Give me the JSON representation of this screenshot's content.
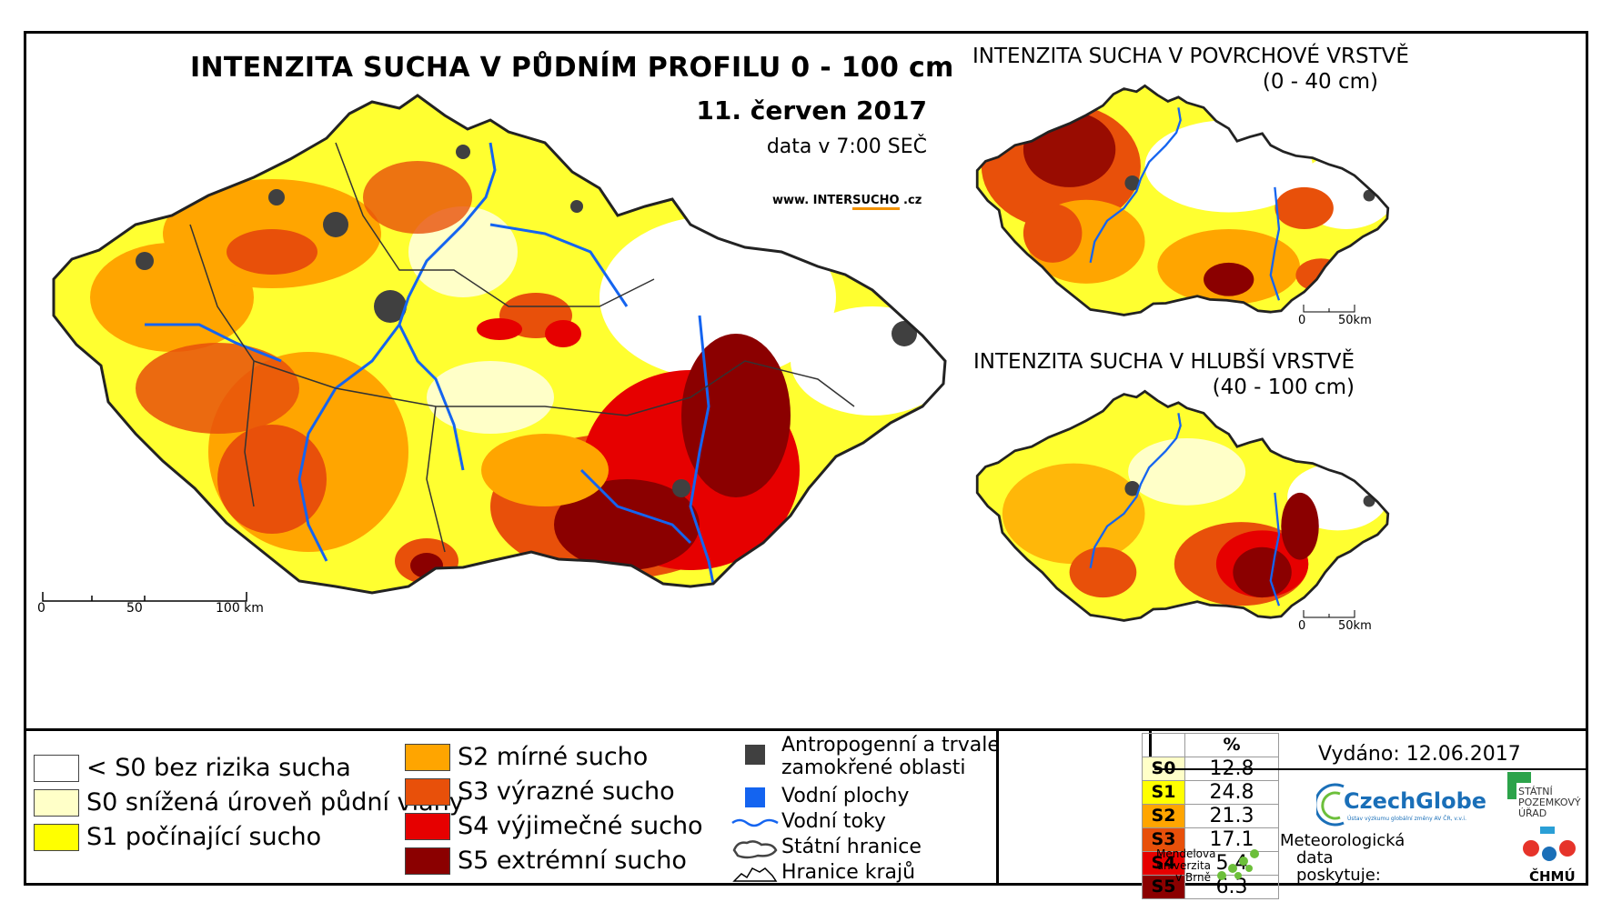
{
  "main": {
    "title": "INTENZITA SUCHA V PŮDNÍM PROFILU 0 - 100 cm",
    "date": "11. červen 2017",
    "time": "data v 7:00 SEČ",
    "url_prefix": "www. INTER",
    "url_highlight": "SUCHO",
    "url_suffix": " .cz",
    "scale": [
      "0",
      "50",
      "100 km"
    ]
  },
  "inset_top": {
    "title": "INTENZITA SUCHA V POVRCHOVÉ VRSTVĚ",
    "subtitle": "(0 - 40 cm)",
    "scale": [
      "0",
      "50km"
    ]
  },
  "inset_bottom": {
    "title": "INTENZITA SUCHA V HLUBŠÍ VRSTVĚ",
    "subtitle": "(40 - 100 cm)",
    "scale": [
      "0",
      "50km"
    ]
  },
  "legend": {
    "classes_left": [
      {
        "label": "< S0 bez rizika sucha",
        "color": "#ffffff"
      },
      {
        "label": "S0 snížená úroveň půdní vláhy",
        "color": "#ffffc8"
      },
      {
        "label": "S1 počínající sucho",
        "color": "#ffff00"
      }
    ],
    "classes_mid": [
      {
        "label": "S2 mírné sucho",
        "color": "#ffa500"
      },
      {
        "label": "S3 výrazné sucho",
        "color": "#e8500a"
      },
      {
        "label": "S4 výjimečné sucho",
        "color": "#e60000"
      },
      {
        "label": "S5 extrémní sucho",
        "color": "#8b0000"
      }
    ],
    "symbols": [
      {
        "label1": "Antropogenní a trvale",
        "label2": "zamokřené oblasti",
        "icon": "grey-square-icon",
        "color": "#404040"
      },
      {
        "label1": "Vodní plochy",
        "icon": "blue-square-icon",
        "color": "#1464f0"
      },
      {
        "label1": "Vodní toky",
        "icon": "river-line-icon",
        "color": "#1464f0"
      },
      {
        "label1": "Státní hranice",
        "icon": "state-border-icon"
      },
      {
        "label1": "Hranice krajů",
        "icon": "region-border-icon"
      }
    ]
  },
  "percent_table": {
    "header": "%",
    "rows": [
      {
        "code": "S0",
        "value": "12.8",
        "color": "#ffffc8"
      },
      {
        "code": "S1",
        "value": "24.8",
        "color": "#ffff00"
      },
      {
        "code": "S2",
        "value": "21.3",
        "color": "#ffa500"
      },
      {
        "code": "S3",
        "value": "17.1",
        "color": "#e8500a"
      },
      {
        "code": "S4",
        "value": "5.4",
        "color": "#e60000"
      },
      {
        "code": "S5",
        "value": "6.3",
        "color": "#8b0000"
      }
    ]
  },
  "credits": {
    "issued": "Vydáno: 12.06.2017",
    "czechglobe": "CzechGlobe",
    "czechglobe_sub": "Ústav výzkumu globální změny AV ČR, v.v.i.",
    "spu": [
      "STÁTNÍ",
      "POZEMKOVÝ",
      "ÚŘAD"
    ],
    "mendel": [
      "Mendelova",
      "univerzita",
      "v Brně"
    ],
    "meteo": [
      "Meteorologická",
      "data",
      "poskytuje:"
    ],
    "chmu": "ČHMÚ"
  }
}
